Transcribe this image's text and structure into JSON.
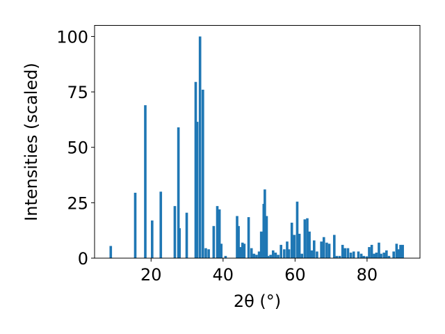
{
  "chart_data": {
    "type": "bar",
    "xlabel": "2θ (°)",
    "ylabel": "Intensities (scaled)",
    "xlim": [
      4.3,
      94.7
    ],
    "ylim": [
      0,
      105
    ],
    "xticks": [
      20,
      40,
      60,
      80
    ],
    "yticks": [
      0,
      25,
      50,
      75,
      100
    ],
    "bar_width": 0.7,
    "bar_color": "#1f77b4",
    "grid": false,
    "x": [
      8.8,
      15.6,
      18.4,
      20.3,
      22.7,
      26.6,
      27.6,
      27.9,
      29.9,
      32.4,
      32.8,
      33.6,
      34.4,
      35.2,
      36.0,
      37.4,
      38.4,
      39.0,
      39.5,
      40.7,
      43.9,
      44.3,
      44.8,
      45.4,
      45.9,
      47.1,
      47.9,
      48.6,
      49.3,
      50.0,
      50.6,
      51.3,
      51.6,
      52.1,
      52.5,
      53.2,
      53.9,
      54.6,
      55.3,
      56.1,
      57.0,
      57.8,
      58.3,
      59.1,
      59.8,
      60.6,
      61.2,
      61.9,
      62.7,
      63.4,
      64.0,
      64.6,
      65.3,
      66.1,
      67.3,
      68.0,
      68.8,
      69.5,
      70.9,
      71.6,
      72.4,
      73.2,
      73.9,
      74.7,
      75.5,
      76.3,
      77.6,
      78.4,
      79.1,
      79.9,
      80.6,
      81.3,
      82.0,
      82.6,
      83.3,
      83.9,
      84.7,
      85.4,
      86.1,
      87.4,
      88.2,
      88.8,
      89.3,
      89.9
    ],
    "values": [
      5.5,
      29.5,
      69.0,
      17.0,
      30.0,
      23.5,
      59.0,
      13.5,
      20.5,
      79.5,
      61.5,
      100.0,
      76.0,
      4.5,
      4.0,
      14.5,
      23.5,
      22.0,
      6.5,
      1.0,
      19.0,
      14.5,
      5.0,
      7.0,
      6.5,
      18.5,
      4.5,
      2.0,
      1.5,
      3.0,
      12.0,
      24.5,
      31.0,
      19.0,
      1.0,
      1.5,
      3.5,
      2.5,
      1.5,
      6.0,
      4.0,
      7.5,
      4.0,
      16.0,
      10.5,
      25.5,
      11.0,
      2.0,
      17.5,
      18.0,
      12.0,
      3.5,
      8.0,
      3.0,
      7.5,
      9.5,
      7.0,
      6.5,
      10.5,
      1.0,
      1.0,
      6.0,
      4.5,
      4.5,
      2.5,
      3.0,
      3.0,
      2.0,
      1.0,
      0.8,
      5.0,
      6.0,
      2.0,
      2.5,
      7.0,
      2.0,
      2.5,
      3.5,
      1.0,
      3.0,
      6.5,
      4.0,
      6.0,
      6.0
    ]
  }
}
